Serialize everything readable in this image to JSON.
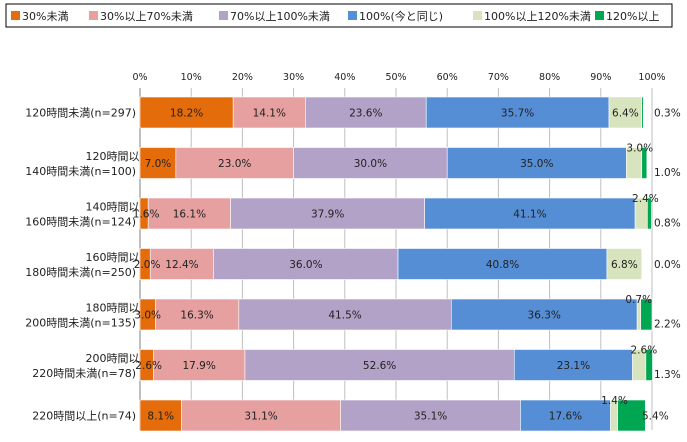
{
  "chart_data": {
    "type": "bar",
    "orientation": "horizontal",
    "stacked": true,
    "title": "",
    "xlabel": "",
    "ylabel": "",
    "xlim": [
      0,
      100
    ],
    "x_ticks": [
      "0%",
      "10%",
      "20%",
      "30%",
      "40%",
      "50%",
      "60%",
      "70%",
      "80%",
      "90%",
      "100%"
    ],
    "legend_position": "top",
    "categories": [
      [
        "120時間未満(n=297)"
      ],
      [
        "120時間以上",
        "140時間未満(n=100)"
      ],
      [
        "140時間以上",
        "160時間未満(n=124)"
      ],
      [
        "160時間以上",
        "180時間未満(n=250)"
      ],
      [
        "180時間以上",
        "200時間未満(n=135)"
      ],
      [
        "200時間以上",
        "220時間未満(n=78)"
      ],
      [
        "220時間以上(n=74)"
      ]
    ],
    "series": [
      {
        "name": "30%未満",
        "color": "#e46c0a",
        "values": [
          18.2,
          7.0,
          1.6,
          2.0,
          3.0,
          2.6,
          8.1
        ]
      },
      {
        "name": "30%以上70%未満",
        "color": "#e6a0a0",
        "values": [
          14.1,
          23.0,
          16.1,
          12.4,
          16.3,
          17.9,
          31.1
        ]
      },
      {
        "name": "70%以上100%未満",
        "color": "#b3a2c7",
        "values": [
          23.6,
          30.0,
          37.9,
          36.0,
          41.5,
          52.6,
          35.1
        ]
      },
      {
        "name": "100%(今と同じ)",
        "color": "#558ed5",
        "values": [
          35.7,
          35.0,
          41.1,
          40.8,
          36.3,
          23.1,
          17.6
        ]
      },
      {
        "name": "100%以上120%未満",
        "color": "#d7e4bd",
        "values": [
          6.4,
          3.0,
          2.4,
          6.8,
          0.7,
          2.6,
          1.4
        ]
      },
      {
        "name": "120%以上",
        "color": "#00a651",
        "values": [
          0.3,
          1.0,
          0.8,
          0.0,
          2.2,
          1.3,
          5.4
        ]
      }
    ]
  }
}
